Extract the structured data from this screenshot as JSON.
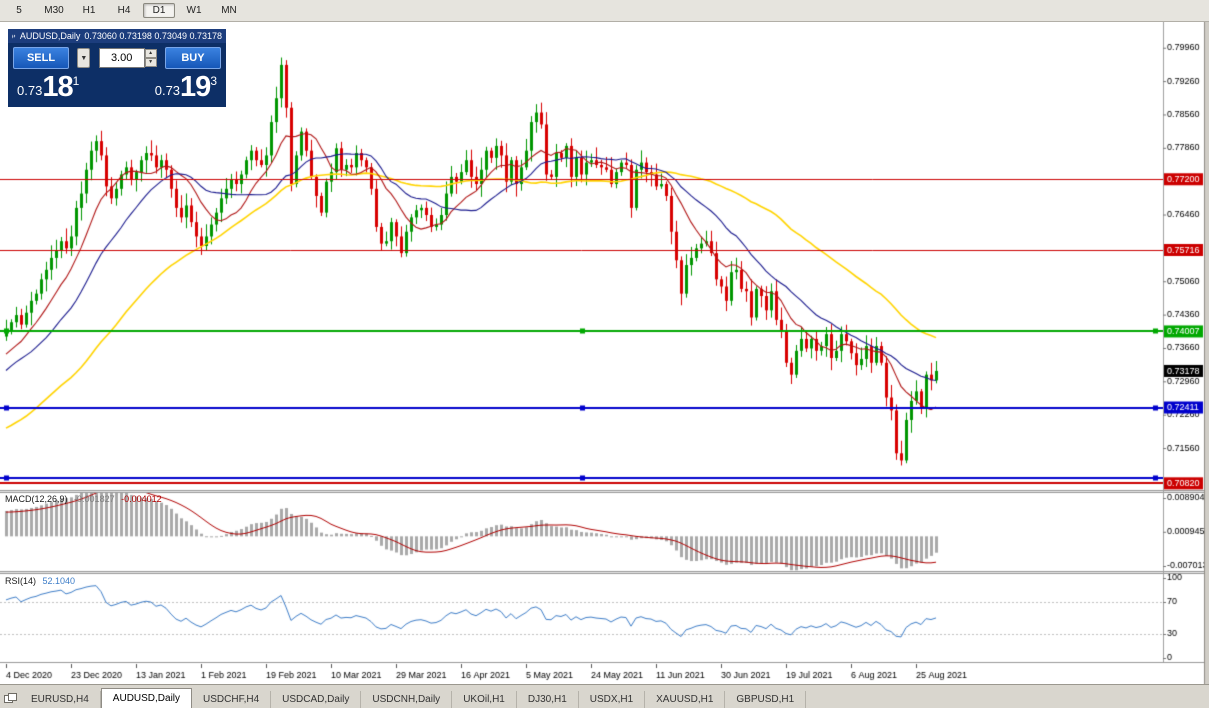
{
  "toolbar": {
    "periods": [
      {
        "label": "5"
      },
      {
        "label": "M30"
      },
      {
        "label": "H1"
      },
      {
        "label": "H4"
      },
      {
        "label": "D1",
        "active": true
      },
      {
        "label": "W1"
      },
      {
        "label": "MN"
      }
    ]
  },
  "chart_window": {
    "symbol_period": "AUDUSD,Daily",
    "ohlc": "0.73060 0.73198 0.73049 0.73178"
  },
  "trade_panel": {
    "sell_label": "SELL",
    "buy_label": "BUY",
    "volume": "3.00",
    "bid": {
      "prefix": "0.73",
      "big": "18",
      "sup": "1"
    },
    "ask": {
      "prefix": "0.73",
      "big": "19",
      "sup": "3"
    }
  },
  "indicators": {
    "macd": {
      "name": "MACD(12,26,9)",
      "value1": "-0.001827",
      "value2": "-0.004012",
      "axis": [
        0.008904,
        0.000945,
        -0.007013
      ]
    },
    "rsi": {
      "name": "RSI(14)",
      "value": "52.1040",
      "axis": [
        100,
        70,
        30,
        0
      ],
      "levels": [
        70,
        30
      ]
    }
  },
  "tabs": {
    "items": [
      {
        "label": "EURUSD,H4"
      },
      {
        "label": "AUDUSD,Daily",
        "active": true
      },
      {
        "label": "USDCHF,H4"
      },
      {
        "label": "USDCAD,Daily"
      },
      {
        "label": "USDCNH,Daily"
      },
      {
        "label": "UKOil,H1"
      },
      {
        "label": "DJ30,H1"
      },
      {
        "label": "USDX,H1"
      },
      {
        "label": "XAUUSD,H1"
      },
      {
        "label": "GBPUSD,H1"
      }
    ]
  },
  "chart_data": {
    "type": "candlestick",
    "symbol": "AUDUSD",
    "timeframe": "Daily",
    "current_price": 0.73178,
    "y_ticks": [
      0.7996,
      0.7926,
      0.7856,
      0.7786,
      0.7646,
      0.7506,
      0.7436,
      0.7366,
      0.7296,
      0.7226,
      0.7156
    ],
    "price_lines": [
      {
        "price": 0.772,
        "color": "#cc0000",
        "width": 1,
        "tag": true,
        "selected": false
      },
      {
        "price": 0.75716,
        "color": "#cc0000",
        "width": 1,
        "tag": true,
        "selected": false
      },
      {
        "price": 0.74007,
        "color": "#00a800",
        "width": 2,
        "tag": true,
        "selected": true
      },
      {
        "price": 0.72411,
        "color": "#0000cc",
        "width": 2,
        "tag": true,
        "selected": true
      },
      {
        "price": 0.7093,
        "color": "#0000cc",
        "width": 2,
        "tag": false,
        "selected": true
      },
      {
        "price": 0.7082,
        "color": "#cc0000",
        "width": 2,
        "tag": true,
        "selected": false
      }
    ],
    "x_labels": [
      {
        "index": 0,
        "text": "4 Dec 2020"
      },
      {
        "index": 13,
        "text": "23 Dec 2020"
      },
      {
        "index": 26,
        "text": "13 Jan 2021"
      },
      {
        "index": 39,
        "text": "1 Feb 2021"
      },
      {
        "index": 52,
        "text": "19 Feb 2021"
      },
      {
        "index": 65,
        "text": "10 Mar 2021"
      },
      {
        "index": 78,
        "text": "29 Mar 2021"
      },
      {
        "index": 91,
        "text": "16 Apr 2021"
      },
      {
        "index": 104,
        "text": "5 May 2021"
      },
      {
        "index": 117,
        "text": "24 May 2021"
      },
      {
        "index": 130,
        "text": "11 Jun 2021"
      },
      {
        "index": 143,
        "text": "30 Jun 2021"
      },
      {
        "index": 156,
        "text": "19 Jul 2021"
      },
      {
        "index": 169,
        "text": "6 Aug 2021"
      },
      {
        "index": 182,
        "text": "25 Aug 2021"
      }
    ],
    "moving_averages": [
      {
        "period": 10,
        "color": "#b01414"
      },
      {
        "period": 21,
        "color": "#1a1a8e"
      },
      {
        "period": 50,
        "color": "#ffd400"
      }
    ],
    "colors": {
      "up": "#009600",
      "down": "#d80000"
    },
    "pre_closes": [
      0.716,
      0.7145,
      0.713,
      0.711,
      0.7085,
      0.706,
      0.7045,
      0.703,
      0.705,
      0.708,
      0.71,
      0.7125,
      0.715,
      0.717,
      0.7155,
      0.714,
      0.712,
      0.71,
      0.708,
      0.711,
      0.713,
      0.7105,
      0.707,
      0.705,
      0.7075,
      0.71,
      0.713,
      0.716,
      0.7185,
      0.721,
      0.723,
      0.7255,
      0.727,
      0.729,
      0.731,
      0.7285,
      0.73,
      0.732,
      0.7305,
      0.729,
      0.731,
      0.733,
      0.7345,
      0.733,
      0.731,
      0.733,
      0.735,
      0.7365,
      0.738,
      0.739
    ],
    "closes": [
      0.74,
      0.742,
      0.7435,
      0.7415,
      0.744,
      0.7465,
      0.748,
      0.751,
      0.753,
      0.7555,
      0.757,
      0.759,
      0.7575,
      0.76,
      0.766,
      0.769,
      0.774,
      0.778,
      0.78,
      0.777,
      0.7705,
      0.768,
      0.77,
      0.773,
      0.7745,
      0.772,
      0.7735,
      0.776,
      0.7775,
      0.777,
      0.7745,
      0.776,
      0.774,
      0.77,
      0.766,
      0.764,
      0.7665,
      0.763,
      0.76,
      0.758,
      0.76,
      0.7625,
      0.765,
      0.768,
      0.77,
      0.772,
      0.771,
      0.773,
      0.776,
      0.778,
      0.776,
      0.775,
      0.777,
      0.784,
      0.789,
      0.796,
      0.787,
      0.771,
      0.777,
      0.782,
      0.778,
      0.7725,
      0.7685,
      0.765,
      0.7715,
      0.7735,
      0.7785,
      0.774,
      0.775,
      0.7745,
      0.7775,
      0.776,
      0.7745,
      0.77,
      0.762,
      0.7585,
      0.759,
      0.763,
      0.76,
      0.7565,
      0.761,
      0.764,
      0.7655,
      0.766,
      0.7645,
      0.762,
      0.7625,
      0.7645,
      0.769,
      0.7725,
      0.7715,
      0.7735,
      0.776,
      0.7725,
      0.771,
      0.774,
      0.778,
      0.7765,
      0.779,
      0.777,
      0.7715,
      0.776,
      0.771,
      0.7745,
      0.778,
      0.784,
      0.786,
      0.7835,
      0.773,
      0.7725,
      0.7775,
      0.7765,
      0.779,
      0.7725,
      0.7765,
      0.773,
      0.7755,
      0.776,
      0.775,
      0.7745,
      0.774,
      0.771,
      0.7735,
      0.7755,
      0.775,
      0.766,
      0.774,
      0.7755,
      0.7735,
      0.773,
      0.7705,
      0.771,
      0.7685,
      0.761,
      0.755,
      0.748,
      0.754,
      0.7555,
      0.7575,
      0.7585,
      0.759,
      0.7565,
      0.751,
      0.7495,
      0.7465,
      0.7525,
      0.753,
      0.749,
      0.7485,
      0.743,
      0.749,
      0.7475,
      0.7445,
      0.7485,
      0.7425,
      0.74,
      0.7335,
      0.731,
      0.736,
      0.7385,
      0.7365,
      0.7385,
      0.736,
      0.737,
      0.7395,
      0.7345,
      0.736,
      0.7395,
      0.738,
      0.7355,
      0.733,
      0.7343,
      0.737,
      0.7335,
      0.737,
      0.7335,
      0.7262,
      0.7235,
      0.7145,
      0.713,
      0.7215,
      0.7255,
      0.7275,
      0.724,
      0.731,
      0.7298,
      0.73178
    ]
  }
}
